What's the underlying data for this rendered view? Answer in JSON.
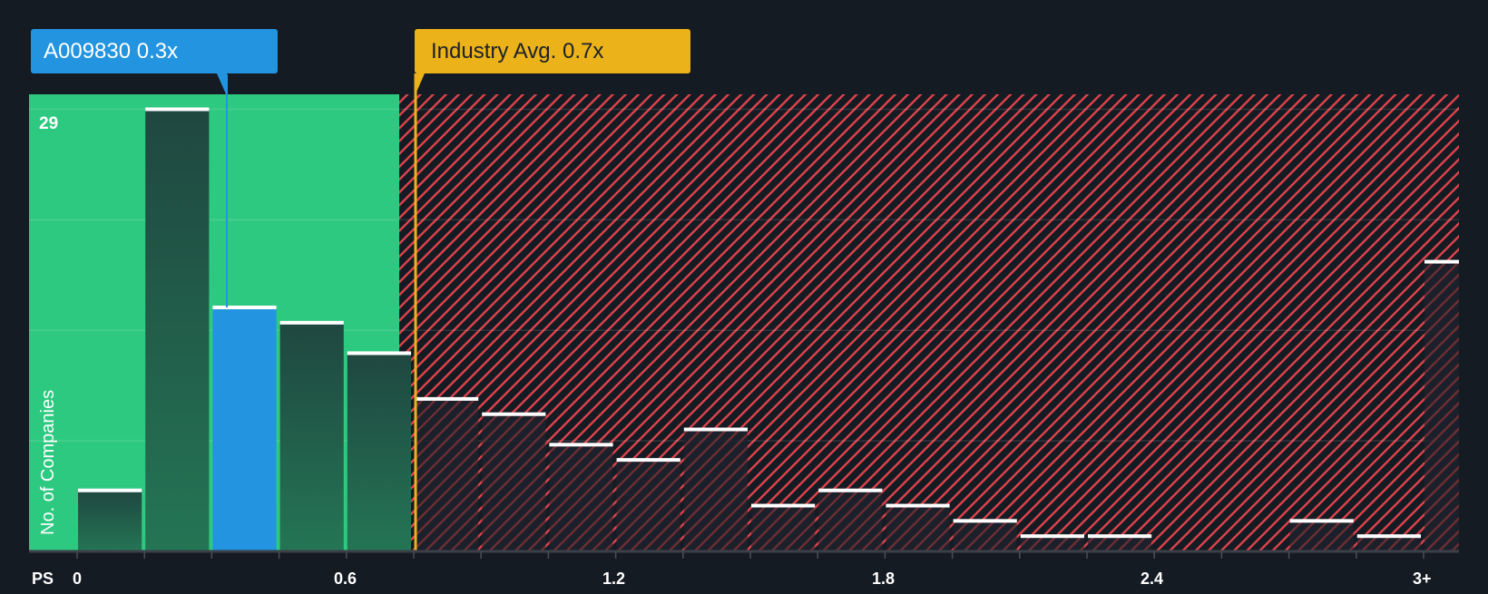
{
  "chart_data": {
    "type": "bar",
    "title": "",
    "xlabel": "PS",
    "ylabel": "No. of Companies",
    "bin_width": 0.15,
    "bins": [
      "0-0.15",
      "0.15-0.3",
      "0.3-0.45",
      "0.45-0.6",
      "0.6-0.75",
      "0.75-0.9",
      "0.9-1.05",
      "1.05-1.2",
      "1.2-1.35",
      "1.35-1.5",
      "1.5-1.65",
      "1.65-1.8",
      "1.8-1.95",
      "1.95-2.1",
      "2.1-2.25",
      "2.25-2.4",
      "2.4-2.55",
      "2.55-2.7",
      "2.7-2.85",
      "2.85-3.0",
      "3+"
    ],
    "values": [
      4,
      29,
      16,
      15,
      13,
      10,
      9,
      7,
      6,
      8,
      3,
      4,
      3,
      2,
      1,
      1,
      0,
      0,
      2,
      1,
      19
    ],
    "highlight_bin_index": 2,
    "x_ticks": [
      {
        "label": "0",
        "value": 0
      },
      {
        "label": "0.6",
        "value": 0.6
      },
      {
        "label": "1.2",
        "value": 1.2
      },
      {
        "label": "1.8",
        "value": 1.8
      },
      {
        "label": "2.4",
        "value": 2.4
      },
      {
        "label": "3+",
        "value": 3.0
      }
    ],
    "y_max_label": "29",
    "ylim": [
      0,
      29
    ],
    "gridlines": 4,
    "annotations": [
      {
        "label": "A009830 0.3x",
        "value": 0.3,
        "color": "#2394df"
      },
      {
        "label": "Industry Avg. 0.7x",
        "value": 0.7,
        "color": "#ebb21a"
      }
    ],
    "regions": [
      {
        "name": "undervalued",
        "from": 0,
        "to": 0.72,
        "color": "#2ec980"
      },
      {
        "name": "overvalued",
        "from": 0.72,
        "to": 3.15,
        "color": "#e0434b",
        "pattern": "hatch"
      }
    ]
  },
  "labels": {
    "company_callout": "A009830 0.3x",
    "industry_callout": "Industry Avg. 0.7x",
    "x_axis_title": "PS",
    "y_axis_title": "No. of Companies",
    "y_max": "29",
    "ticks": [
      "0",
      "0.6",
      "1.2",
      "1.8",
      "2.4",
      "3+"
    ]
  },
  "colors": {
    "background": "#151b23",
    "green": "#2ec980",
    "bar_dark": "#214a40",
    "highlight": "#2394df",
    "hatch": "#e0434b",
    "industry": "#ebb21a"
  }
}
